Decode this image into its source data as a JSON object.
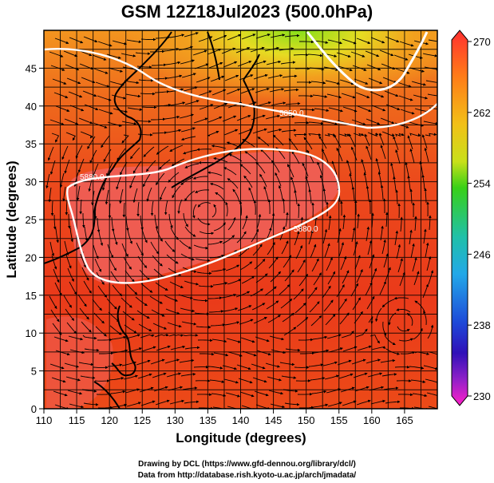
{
  "title": "GSM 12Z18Jul2023 (500.0hPa)",
  "axes": {
    "xlabel": "Longitude (degrees)",
    "ylabel": "Latitude  (degrees)",
    "xticks": [
      "110",
      "115",
      "120",
      "125",
      "130",
      "135",
      "140",
      "145",
      "150",
      "155",
      "160",
      "165"
    ],
    "yticks": [
      "0",
      "5",
      "10",
      "15",
      "20",
      "25",
      "30",
      "35",
      "40",
      "45"
    ],
    "xlim": [
      110,
      170
    ],
    "ylim": [
      0,
      50
    ]
  },
  "colorbar": {
    "ticks": [
      "270",
      "262",
      "254",
      "246",
      "238",
      "230"
    ],
    "range": [
      230,
      270
    ]
  },
  "contours": [
    {
      "label": "5850.0",
      "level": 5850
    },
    {
      "label": "5880.0",
      "level": 5880
    },
    {
      "label": "5880.0",
      "level": 5880
    }
  ],
  "credits": {
    "line1": "Drawing by DCL (https://www.gfd-dennou.org/library/dcl/)",
    "line2": "Data from http://database.rish.kyoto-u.ac.jp/arch/jmadata/"
  },
  "colors": {
    "warm_core": "#f0605a",
    "red": "#ee3a1c",
    "orange": "#f06a1e",
    "yellow": "#f5d21e",
    "green": "#8ee018"
  }
}
